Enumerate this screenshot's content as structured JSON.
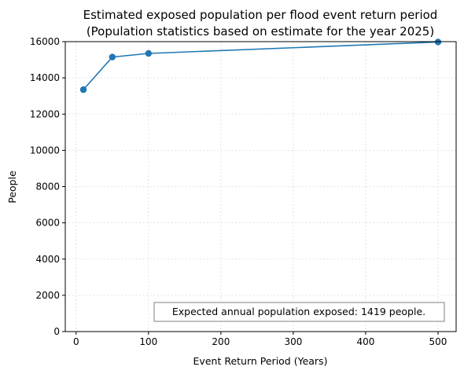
{
  "chart_data": {
    "type": "line",
    "title": "Estimated exposed population per flood event return period",
    "subtitle": "(Population statistics based on estimate for the year 2025)",
    "xlabel": "Event Return Period (Years)",
    "ylabel": "People",
    "xlim": [
      -15,
      525
    ],
    "ylim": [
      0,
      16000
    ],
    "xticks": [
      0,
      100,
      200,
      300,
      400,
      500
    ],
    "yticks": [
      0,
      2000,
      4000,
      6000,
      8000,
      10000,
      12000,
      14000,
      16000
    ],
    "grid": true,
    "series": [
      {
        "x": [
          10,
          50,
          100,
          500
        ],
        "values": [
          13350,
          15150,
          15350,
          15980
        ],
        "color": "#1f77b4",
        "marker": "circle"
      }
    ],
    "annotation": "Expected annual population exposed: 1419 people.",
    "annotation_placement": "bottom-right"
  }
}
